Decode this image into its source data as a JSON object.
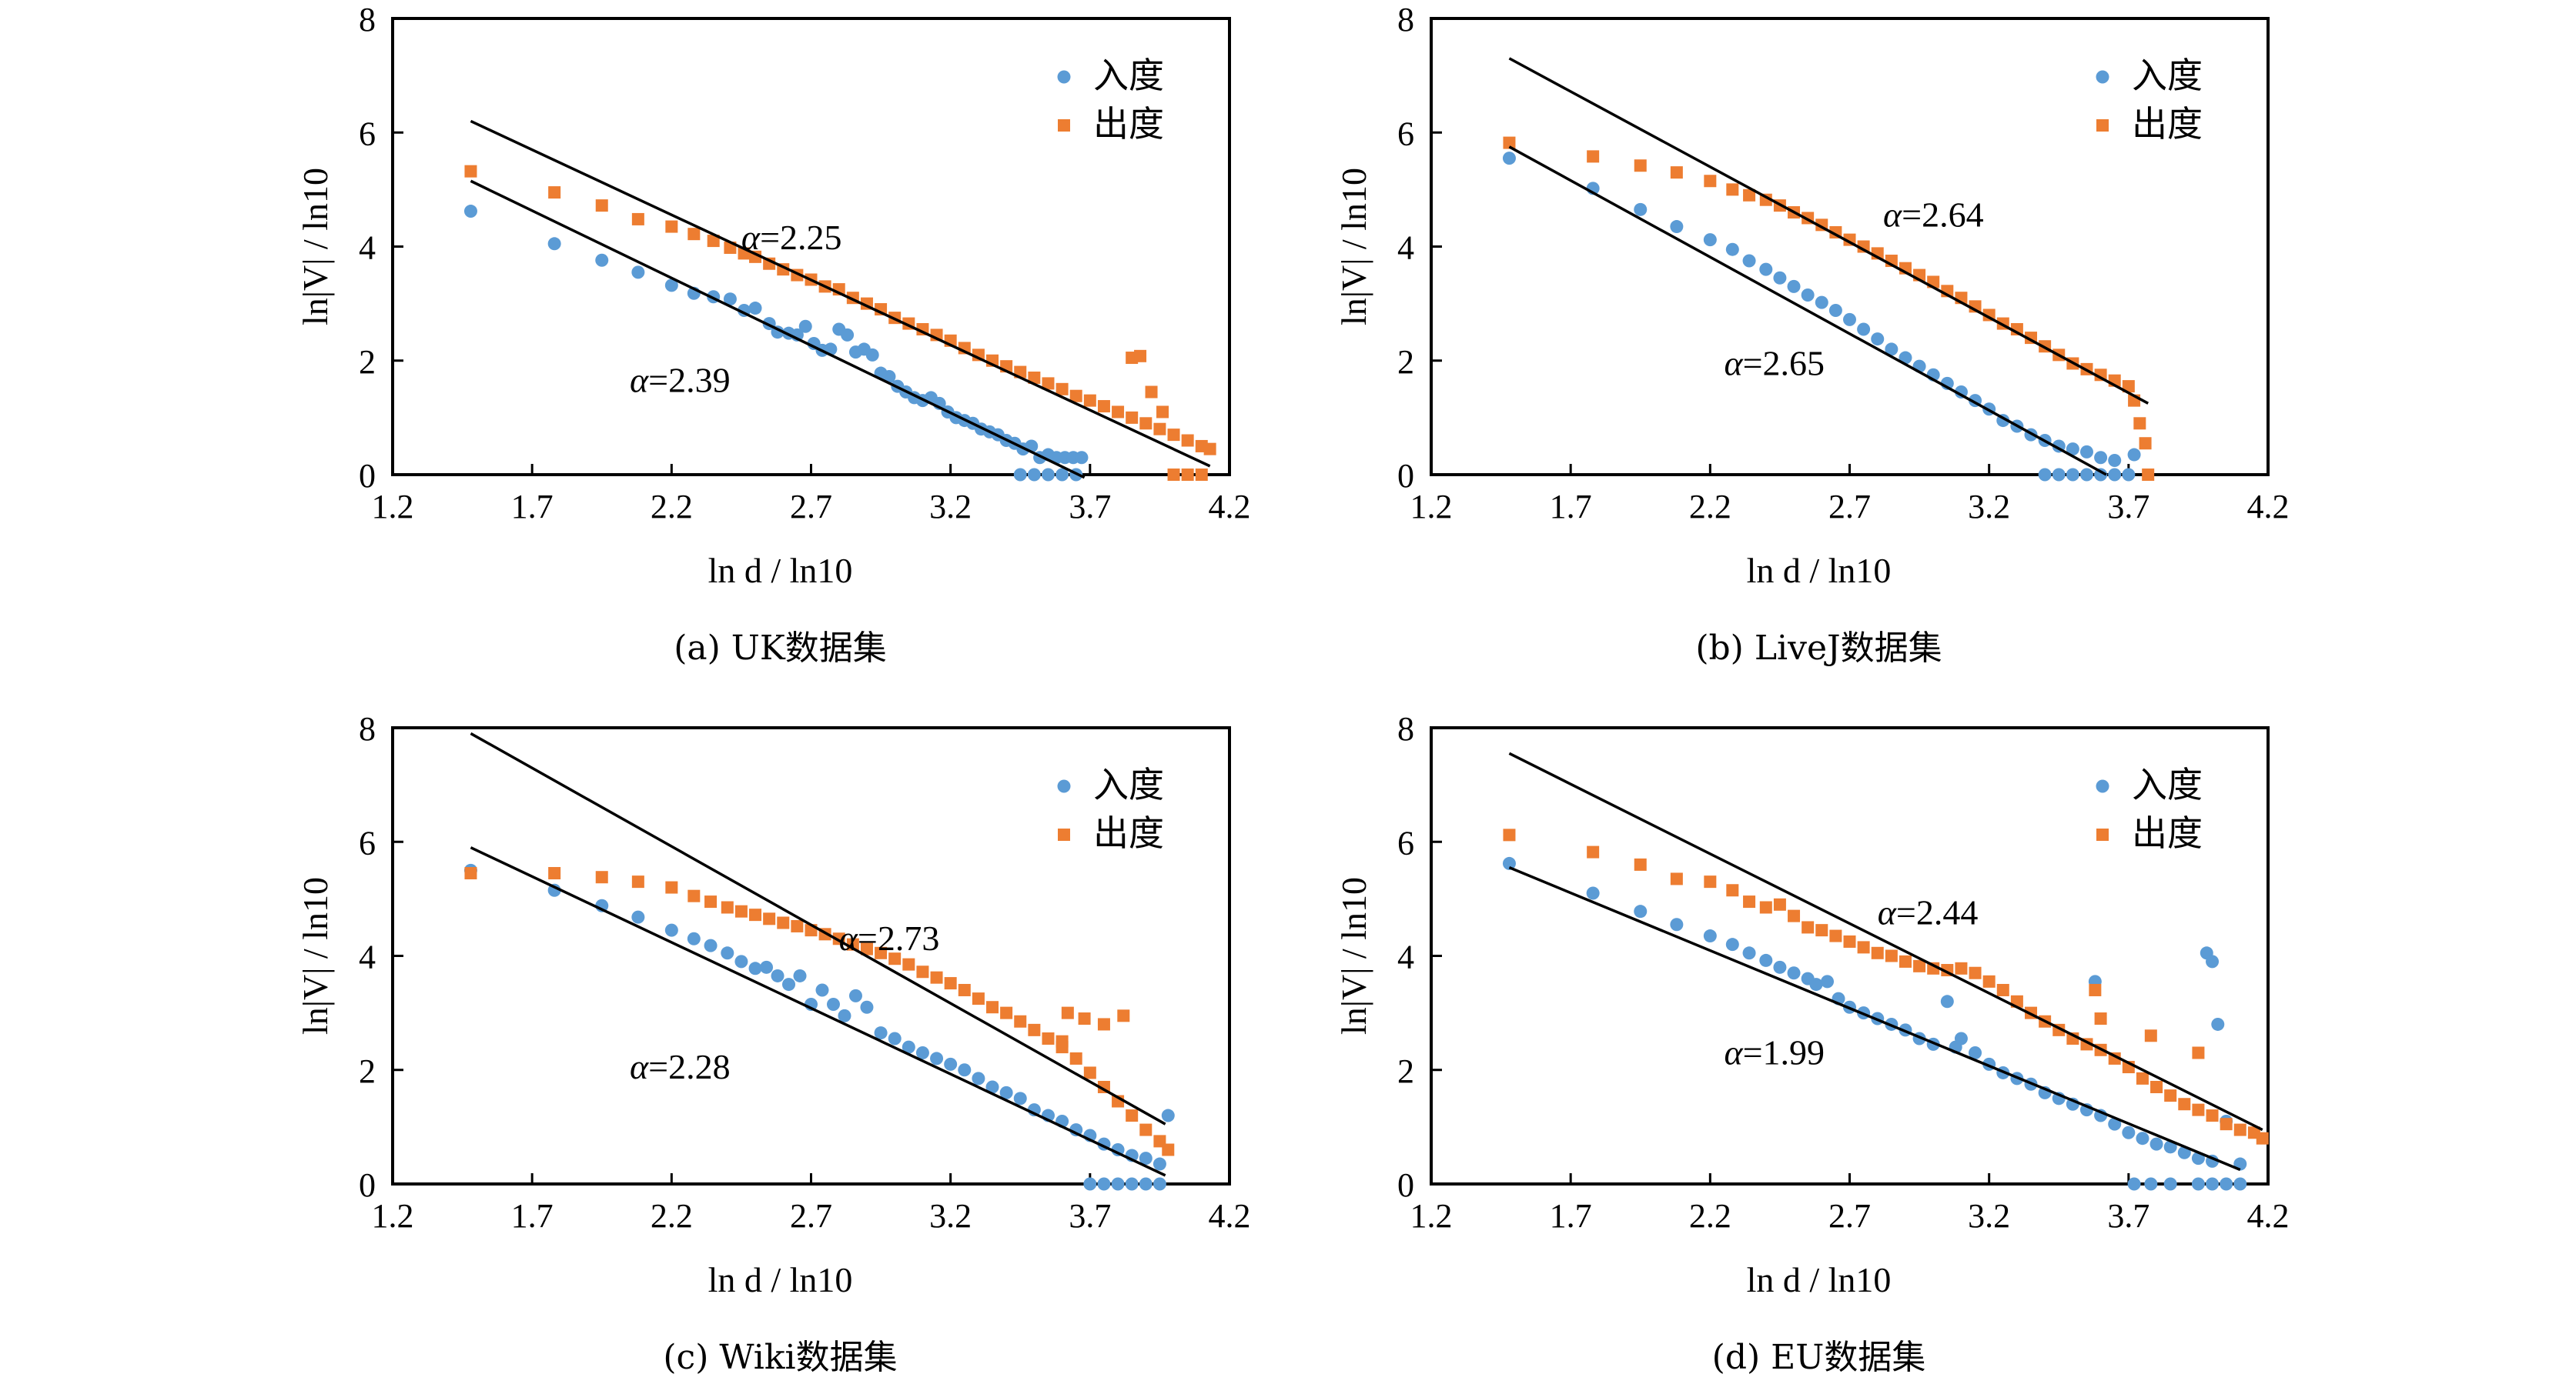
{
  "figure": {
    "series_legend": [
      "入度",
      "出度"
    ],
    "colors": {
      "in_degree": "#5B9BD5",
      "out_degree": "#ED7D31",
      "fit_line": "#000000",
      "axis": "#000000"
    }
  },
  "chart_data": [
    {
      "type": "scatter",
      "panel": "a",
      "caption": "(a)  UK数据集",
      "xlabel": "ln d / ln10",
      "ylabel": "ln|V| / ln10",
      "xlim": [
        1.2,
        4.2
      ],
      "ylim": [
        0,
        8
      ],
      "xticks": [
        "1.2",
        "1.7",
        "2.2",
        "2.7",
        "3.2",
        "3.7",
        "4.2"
      ],
      "yticks": [
        "0",
        "2",
        "4",
        "6",
        "8"
      ],
      "legend": {
        "placement": "top-right",
        "entries": [
          "入度",
          "出度"
        ]
      },
      "grid": false,
      "series": [
        {
          "name": "入度",
          "marker": "circle",
          "x": [
            1.48,
            1.78,
            1.95,
            2.08,
            2.2,
            2.28,
            2.35,
            2.41,
            2.46,
            2.5,
            2.55,
            2.58,
            2.62,
            2.65,
            2.68,
            2.71,
            2.74,
            2.77,
            2.8,
            2.83,
            2.86,
            2.89,
            2.92,
            2.95,
            2.98,
            3.01,
            3.04,
            3.07,
            3.1,
            3.13,
            3.16,
            3.19,
            3.22,
            3.25,
            3.28,
            3.31,
            3.34,
            3.37,
            3.4,
            3.43,
            3.46,
            3.49,
            3.52,
            3.55,
            3.58,
            3.61,
            3.64,
            3.67,
            3.45,
            3.5,
            3.55,
            3.6,
            3.65
          ],
          "y": [
            4.62,
            4.05,
            3.76,
            3.55,
            3.32,
            3.18,
            3.12,
            3.08,
            2.88,
            2.92,
            2.65,
            2.5,
            2.48,
            2.45,
            2.6,
            2.3,
            2.18,
            2.2,
            2.55,
            2.45,
            2.15,
            2.2,
            2.1,
            1.78,
            1.72,
            1.55,
            1.45,
            1.35,
            1.3,
            1.35,
            1.25,
            1.1,
            1.0,
            0.95,
            0.9,
            0.8,
            0.75,
            0.7,
            0.6,
            0.55,
            0.45,
            0.5,
            0.3,
            0.35,
            0.3,
            0.3,
            0.3,
            0.3,
            0.0,
            0.0,
            0.0,
            0.0,
            0.0
          ]
        },
        {
          "name": "出度",
          "marker": "square",
          "x": [
            1.48,
            1.78,
            1.95,
            2.08,
            2.2,
            2.28,
            2.35,
            2.41,
            2.46,
            2.5,
            2.55,
            2.6,
            2.65,
            2.7,
            2.75,
            2.8,
            2.85,
            2.9,
            2.95,
            3.0,
            3.05,
            3.1,
            3.15,
            3.2,
            3.25,
            3.3,
            3.35,
            3.4,
            3.45,
            3.5,
            3.55,
            3.6,
            3.65,
            3.7,
            3.75,
            3.8,
            3.85,
            3.9,
            3.95,
            4.0,
            4.05,
            4.1,
            4.13,
            3.85,
            3.88,
            3.92,
            3.96,
            4.0,
            4.05,
            4.1
          ],
          "y": [
            5.32,
            4.95,
            4.72,
            4.48,
            4.35,
            4.22,
            4.1,
            3.98,
            3.88,
            3.82,
            3.7,
            3.6,
            3.5,
            3.42,
            3.3,
            3.25,
            3.1,
            3.0,
            2.9,
            2.75,
            2.65,
            2.55,
            2.45,
            2.35,
            2.22,
            2.1,
            2.0,
            1.9,
            1.8,
            1.7,
            1.6,
            1.5,
            1.38,
            1.3,
            1.2,
            1.1,
            1.0,
            0.9,
            0.8,
            0.7,
            0.6,
            0.5,
            0.45,
            2.05,
            2.08,
            1.45,
            1.1,
            0.0,
            0.0,
            0.0
          ]
        }
      ],
      "fits": [
        {
          "series": "入度",
          "alpha_label": "α=2.39",
          "x": [
            1.48,
            3.68
          ],
          "y": [
            5.15,
            -0.05
          ]
        },
        {
          "series": "出度",
          "alpha_label": "α=2.25",
          "x": [
            1.48,
            4.13
          ],
          "y": [
            6.2,
            0.15
          ]
        }
      ]
    },
    {
      "type": "scatter",
      "panel": "b",
      "caption": "(b)  LiveJ数据集",
      "xlabel": "ln d / ln10",
      "ylabel": "ln|V| / ln10",
      "xlim": [
        1.2,
        4.2
      ],
      "ylim": [
        0,
        8
      ],
      "xticks": [
        "1.2",
        "1.7",
        "2.2",
        "2.7",
        "3.2",
        "3.7",
        "4.2"
      ],
      "yticks": [
        "0",
        "2",
        "4",
        "6",
        "8"
      ],
      "legend": {
        "placement": "top-right",
        "entries": [
          "入度",
          "出度"
        ]
      },
      "grid": false,
      "series": [
        {
          "name": "入度",
          "marker": "circle",
          "x": [
            1.48,
            1.78,
            1.95,
            2.08,
            2.2,
            2.28,
            2.34,
            2.4,
            2.45,
            2.5,
            2.55,
            2.6,
            2.65,
            2.7,
            2.75,
            2.8,
            2.85,
            2.9,
            2.95,
            3.0,
            3.05,
            3.1,
            3.15,
            3.2,
            3.25,
            3.3,
            3.35,
            3.4,
            3.45,
            3.5,
            3.55,
            3.6,
            3.65,
            3.72,
            3.4,
            3.45,
            3.5,
            3.55,
            3.6,
            3.65,
            3.7
          ],
          "y": [
            5.55,
            5.02,
            4.65,
            4.35,
            4.12,
            3.95,
            3.75,
            3.6,
            3.45,
            3.3,
            3.15,
            3.02,
            2.88,
            2.72,
            2.55,
            2.38,
            2.2,
            2.05,
            1.9,
            1.75,
            1.6,
            1.45,
            1.3,
            1.15,
            0.95,
            0.85,
            0.7,
            0.6,
            0.5,
            0.45,
            0.4,
            0.3,
            0.25,
            0.35,
            0.0,
            0.0,
            0.0,
            0.0,
            0.0,
            0.0,
            0.0
          ]
        },
        {
          "name": "出度",
          "marker": "square",
          "x": [
            1.48,
            1.78,
            1.95,
            2.08,
            2.2,
            2.28,
            2.34,
            2.4,
            2.45,
            2.5,
            2.55,
            2.6,
            2.65,
            2.7,
            2.75,
            2.8,
            2.85,
            2.9,
            2.95,
            3.0,
            3.05,
            3.1,
            3.15,
            3.2,
            3.25,
            3.3,
            3.35,
            3.4,
            3.45,
            3.5,
            3.55,
            3.6,
            3.65,
            3.7,
            3.72,
            3.74,
            3.76,
            3.77
          ],
          "y": [
            5.82,
            5.58,
            5.42,
            5.3,
            5.15,
            5.0,
            4.9,
            4.82,
            4.72,
            4.6,
            4.5,
            4.38,
            4.25,
            4.12,
            4.0,
            3.88,
            3.75,
            3.62,
            3.5,
            3.38,
            3.22,
            3.1,
            2.95,
            2.8,
            2.65,
            2.55,
            2.4,
            2.25,
            2.1,
            1.95,
            1.85,
            1.75,
            1.65,
            1.55,
            1.3,
            0.9,
            0.55,
            0.0
          ]
        }
      ],
      "fits": [
        {
          "series": "入度",
          "alpha_label": "α=2.65",
          "x": [
            1.48,
            3.62
          ],
          "y": [
            5.75,
            0.0
          ]
        },
        {
          "series": "出度",
          "alpha_label": "α=2.64",
          "x": [
            1.48,
            3.77
          ],
          "y": [
            7.3,
            1.25
          ]
        }
      ]
    },
    {
      "type": "scatter",
      "panel": "c",
      "caption": "(c)  Wiki数据集",
      "xlabel": "ln d / ln10",
      "ylabel": "ln|V| / ln10",
      "xlim": [
        1.2,
        4.2
      ],
      "ylim": [
        0,
        8
      ],
      "xticks": [
        "1.2",
        "1.7",
        "2.2",
        "2.7",
        "3.2",
        "3.7",
        "4.2"
      ],
      "yticks": [
        "0",
        "2",
        "4",
        "6",
        "8"
      ],
      "legend": {
        "placement": "top-right",
        "entries": [
          "入度",
          "出度"
        ]
      },
      "grid": false,
      "series": [
        {
          "name": "入度",
          "marker": "circle",
          "x": [
            1.48,
            1.78,
            1.95,
            2.08,
            2.2,
            2.28,
            2.34,
            2.4,
            2.45,
            2.5,
            2.54,
            2.58,
            2.62,
            2.66,
            2.7,
            2.74,
            2.78,
            2.82,
            2.86,
            2.9,
            2.95,
            3.0,
            3.05,
            3.1,
            3.15,
            3.2,
            3.25,
            3.3,
            3.35,
            3.4,
            3.45,
            3.5,
            3.55,
            3.6,
            3.65,
            3.7,
            3.75,
            3.8,
            3.85,
            3.9,
            3.95,
            3.98,
            3.7,
            3.75,
            3.8,
            3.85,
            3.9,
            3.95
          ],
          "y": [
            5.5,
            5.15,
            4.88,
            4.68,
            4.45,
            4.3,
            4.18,
            4.05,
            3.9,
            3.78,
            3.8,
            3.65,
            3.5,
            3.65,
            3.15,
            3.4,
            3.15,
            2.95,
            3.3,
            3.1,
            2.65,
            2.55,
            2.4,
            2.3,
            2.2,
            2.1,
            2.0,
            1.85,
            1.7,
            1.6,
            1.5,
            1.3,
            1.2,
            1.1,
            0.95,
            0.85,
            0.7,
            0.6,
            0.5,
            0.45,
            0.35,
            1.2,
            0.0,
            0.0,
            0.0,
            0.0,
            0.0,
            0.0
          ]
        },
        {
          "name": "出度",
          "marker": "square",
          "x": [
            1.48,
            1.78,
            1.95,
            2.08,
            2.2,
            2.28,
            2.34,
            2.4,
            2.45,
            2.5,
            2.55,
            2.6,
            2.65,
            2.7,
            2.75,
            2.8,
            2.85,
            2.9,
            2.95,
            3.0,
            3.05,
            3.1,
            3.15,
            3.2,
            3.25,
            3.3,
            3.35,
            3.4,
            3.45,
            3.5,
            3.55,
            3.6,
            3.65,
            3.7,
            3.75,
            3.8,
            3.85,
            3.9,
            3.95,
            3.98,
            3.62,
            3.68,
            3.75,
            3.82,
            3.6
          ],
          "y": [
            5.45,
            5.45,
            5.38,
            5.3,
            5.2,
            5.05,
            4.95,
            4.85,
            4.78,
            4.72,
            4.65,
            4.58,
            4.52,
            4.45,
            4.38,
            4.3,
            4.2,
            4.12,
            4.05,
            3.95,
            3.85,
            3.72,
            3.62,
            3.52,
            3.4,
            3.25,
            3.1,
            3.0,
            2.85,
            2.7,
            2.55,
            2.4,
            2.2,
            1.95,
            1.7,
            1.45,
            1.2,
            0.95,
            0.75,
            0.6,
            3.0,
            2.9,
            2.8,
            2.95,
            2.5
          ]
        }
      ],
      "fits": [
        {
          "series": "入度",
          "alpha_label": "α=2.28",
          "x": [
            1.48,
            3.97
          ],
          "y": [
            5.9,
            0.15
          ]
        },
        {
          "series": "出度",
          "alpha_label": "α=2.73",
          "x": [
            1.48,
            3.97
          ],
          "y": [
            7.9,
            1.05
          ]
        }
      ]
    },
    {
      "type": "scatter",
      "panel": "d",
      "caption": "(d)  EU数据集",
      "xlabel": "ln d / ln10",
      "ylabel": "ln|V| / ln10",
      "xlim": [
        1.2,
        4.2
      ],
      "ylim": [
        0,
        8
      ],
      "xticks": [
        "1.2",
        "1.7",
        "2.2",
        "2.7",
        "3.2",
        "3.7",
        "4.2"
      ],
      "yticks": [
        "0",
        "2",
        "4",
        "6",
        "8"
      ],
      "legend": {
        "placement": "top-right",
        "entries": [
          "入度",
          "出度"
        ]
      },
      "grid": false,
      "series": [
        {
          "name": "入度",
          "marker": "circle",
          "x": [
            1.48,
            1.78,
            1.95,
            2.08,
            2.2,
            2.28,
            2.34,
            2.4,
            2.45,
            2.5,
            2.55,
            2.58,
            2.62,
            2.66,
            2.7,
            2.75,
            2.8,
            2.85,
            2.9,
            2.95,
            3.0,
            3.05,
            3.08,
            3.1,
            3.15,
            3.2,
            3.25,
            3.3,
            3.35,
            3.4,
            3.45,
            3.5,
            3.55,
            3.6,
            3.65,
            3.7,
            3.75,
            3.8,
            3.85,
            3.9,
            3.95,
            4.0,
            4.02,
            4.05,
            4.1,
            3.58,
            3.98,
            4.0,
            3.72,
            3.78,
            3.85,
            3.95,
            4.0,
            4.05,
            4.1
          ],
          "y": [
            5.62,
            5.1,
            4.78,
            4.55,
            4.35,
            4.2,
            4.05,
            3.92,
            3.8,
            3.7,
            3.6,
            3.5,
            3.55,
            3.25,
            3.1,
            3.0,
            2.9,
            2.8,
            2.7,
            2.55,
            2.45,
            3.2,
            2.4,
            2.55,
            2.3,
            2.1,
            1.95,
            1.85,
            1.75,
            1.6,
            1.5,
            1.4,
            1.3,
            1.2,
            1.05,
            0.9,
            0.8,
            0.7,
            0.65,
            0.55,
            0.45,
            0.4,
            2.8,
            1.1,
            0.35,
            3.55,
            4.05,
            3.9,
            0.0,
            0.0,
            0.0,
            0.0,
            0.0,
            0.0,
            0.0
          ]
        },
        {
          "name": "出度",
          "marker": "square",
          "x": [
            1.48,
            1.78,
            1.95,
            2.08,
            2.2,
            2.28,
            2.34,
            2.4,
            2.45,
            2.5,
            2.55,
            2.6,
            2.65,
            2.7,
            2.75,
            2.8,
            2.85,
            2.9,
            2.95,
            3.0,
            3.05,
            3.1,
            3.15,
            3.2,
            3.25,
            3.3,
            3.35,
            3.4,
            3.45,
            3.5,
            3.55,
            3.6,
            3.65,
            3.7,
            3.75,
            3.8,
            3.85,
            3.9,
            3.95,
            4.0,
            4.05,
            4.1,
            4.15,
            4.18,
            3.58,
            3.78,
            3.95,
            3.6
          ],
          "y": [
            6.12,
            5.82,
            5.6,
            5.35,
            5.3,
            5.15,
            4.95,
            4.85,
            4.9,
            4.7,
            4.5,
            4.45,
            4.35,
            4.25,
            4.15,
            4.05,
            4.0,
            3.9,
            3.82,
            3.78,
            3.75,
            3.78,
            3.7,
            3.55,
            3.4,
            3.2,
            3.0,
            2.85,
            2.7,
            2.55,
            2.45,
            2.35,
            2.2,
            2.05,
            1.85,
            1.7,
            1.55,
            1.4,
            1.3,
            1.2,
            1.05,
            0.95,
            0.9,
            0.8,
            3.4,
            2.6,
            2.3,
            2.9
          ]
        }
      ],
      "fits": [
        {
          "series": "入度",
          "alpha_label": "α=1.99",
          "x": [
            1.48,
            4.1
          ],
          "y": [
            5.55,
            0.25
          ]
        },
        {
          "series": "出度",
          "alpha_label": "α=2.44",
          "x": [
            1.48,
            4.18
          ],
          "y": [
            7.55,
            0.95
          ]
        }
      ]
    }
  ]
}
